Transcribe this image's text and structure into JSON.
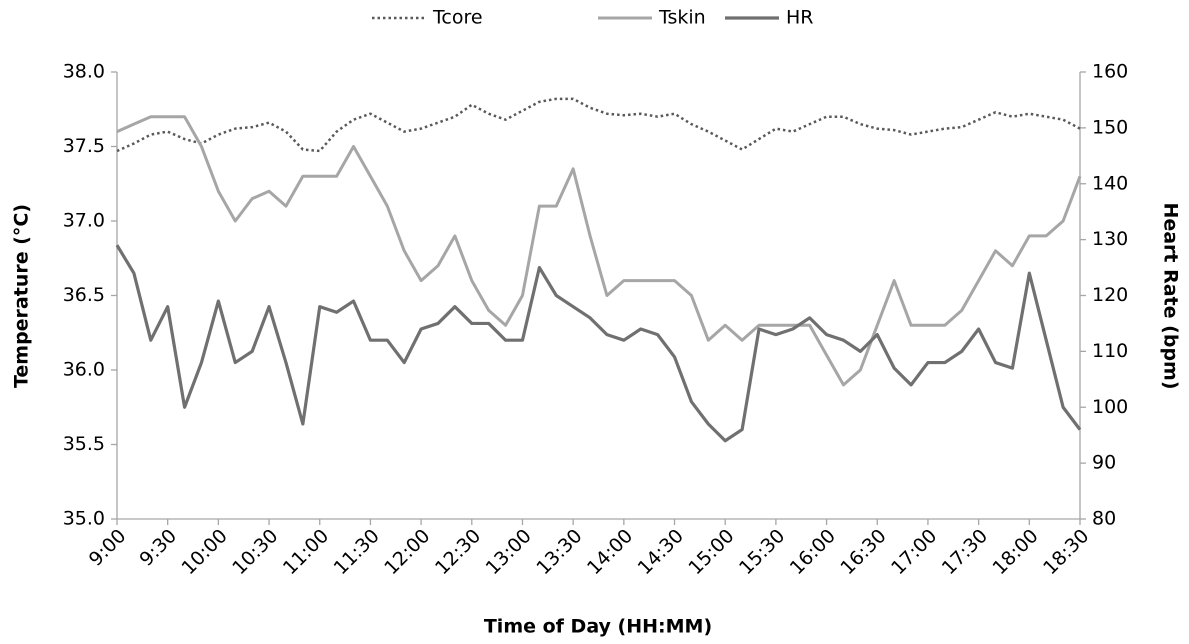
{
  "chart_data": {
    "type": "line",
    "x_label": "Time of Day (HH:MM)",
    "y_label": "Temperature (°C)",
    "y2_label": "Heart Rate (bpm)",
    "categories": [
      "9:00",
      null,
      null,
      "9:30",
      null,
      null,
      "10:00",
      null,
      null,
      "10:30",
      null,
      null,
      "11:00",
      null,
      null,
      "11:30",
      null,
      null,
      "12:00",
      null,
      null,
      "12:30",
      null,
      null,
      "13:00",
      null,
      null,
      "13:30",
      null,
      null,
      "14:00",
      null,
      null,
      "14:30",
      null,
      null,
      "15:00",
      null,
      null,
      "15:30",
      null,
      null,
      "16:00",
      null,
      null,
      "16:30",
      null,
      null,
      "17:00",
      null,
      null,
      "17:30",
      null,
      null,
      "18:00",
      null,
      null,
      "18:30"
    ],
    "series": [
      {
        "name": "Tcore",
        "color": "#595959",
        "dash": "dotted",
        "values": [
          37.47,
          37.52,
          37.58,
          37.6,
          37.55,
          37.52,
          37.58,
          37.62,
          37.63,
          37.66,
          37.6,
          37.48,
          37.47,
          37.6,
          37.68,
          37.72,
          37.66,
          37.6,
          37.62,
          37.66,
          37.7,
          37.78,
          37.72,
          37.68,
          37.74,
          37.8,
          37.82,
          37.82,
          37.76,
          37.72,
          37.71,
          37.72,
          37.7,
          37.72,
          37.65,
          37.6,
          37.54,
          37.48,
          37.55,
          37.62,
          37.6,
          37.65,
          37.7,
          37.7,
          37.65,
          37.62,
          37.61,
          37.58,
          37.6,
          37.62,
          37.63,
          37.68,
          37.73,
          37.7,
          37.72,
          37.7,
          37.68,
          37.62
        ]
      },
      {
        "name": "Tskin",
        "color": "#a6a6a6",
        "dash": "solid",
        "values": [
          37.6,
          37.65,
          37.7,
          37.7,
          37.7,
          37.5,
          37.2,
          37.0,
          37.15,
          37.2,
          37.1,
          37.3,
          37.3,
          37.3,
          37.5,
          37.3,
          37.1,
          36.8,
          36.6,
          36.7,
          36.9,
          36.6,
          36.4,
          36.3,
          36.5,
          37.1,
          37.1,
          37.35,
          36.9,
          36.5,
          36.6,
          36.6,
          36.6,
          36.6,
          36.5,
          36.2,
          36.3,
          36.2,
          36.3,
          36.3,
          36.3,
          36.3,
          36.1,
          35.9,
          36.0,
          36.3,
          36.6,
          36.3,
          36.3,
          36.3,
          36.4,
          36.6,
          36.8,
          36.7,
          36.9,
          36.9,
          37.0,
          37.3
        ]
      },
      {
        "name": "HR",
        "color": "#707070",
        "dash": "solid",
        "axis": "y2",
        "values": [
          129,
          124,
          112,
          118,
          100,
          108,
          119,
          108,
          110,
          118,
          108,
          97,
          118,
          117,
          119,
          112,
          112,
          108,
          114,
          115,
          118,
          115,
          115,
          112,
          112,
          125,
          120,
          118,
          116,
          113,
          112,
          114,
          113,
          109,
          101,
          97,
          94,
          96,
          114,
          113,
          114,
          116,
          113,
          112,
          110,
          113,
          107,
          104,
          108,
          108,
          110,
          114,
          108,
          107,
          124,
          112,
          100,
          96
        ]
      }
    ],
    "ylim": [
      35,
      38
    ],
    "yticks": [
      {
        "value": 35,
        "label": "35.0"
      },
      35.5,
      {
        "value": 36,
        "label": "36.0"
      },
      36.5,
      {
        "value": 37,
        "label": "37.0"
      },
      37.5,
      {
        "value": 38,
        "label": "38.0"
      }
    ],
    "y2lim": [
      80,
      160
    ],
    "y2ticks": [
      80,
      90,
      100,
      110,
      120,
      130,
      140,
      150,
      160
    ],
    "grid": false,
    "legend": "top"
  }
}
